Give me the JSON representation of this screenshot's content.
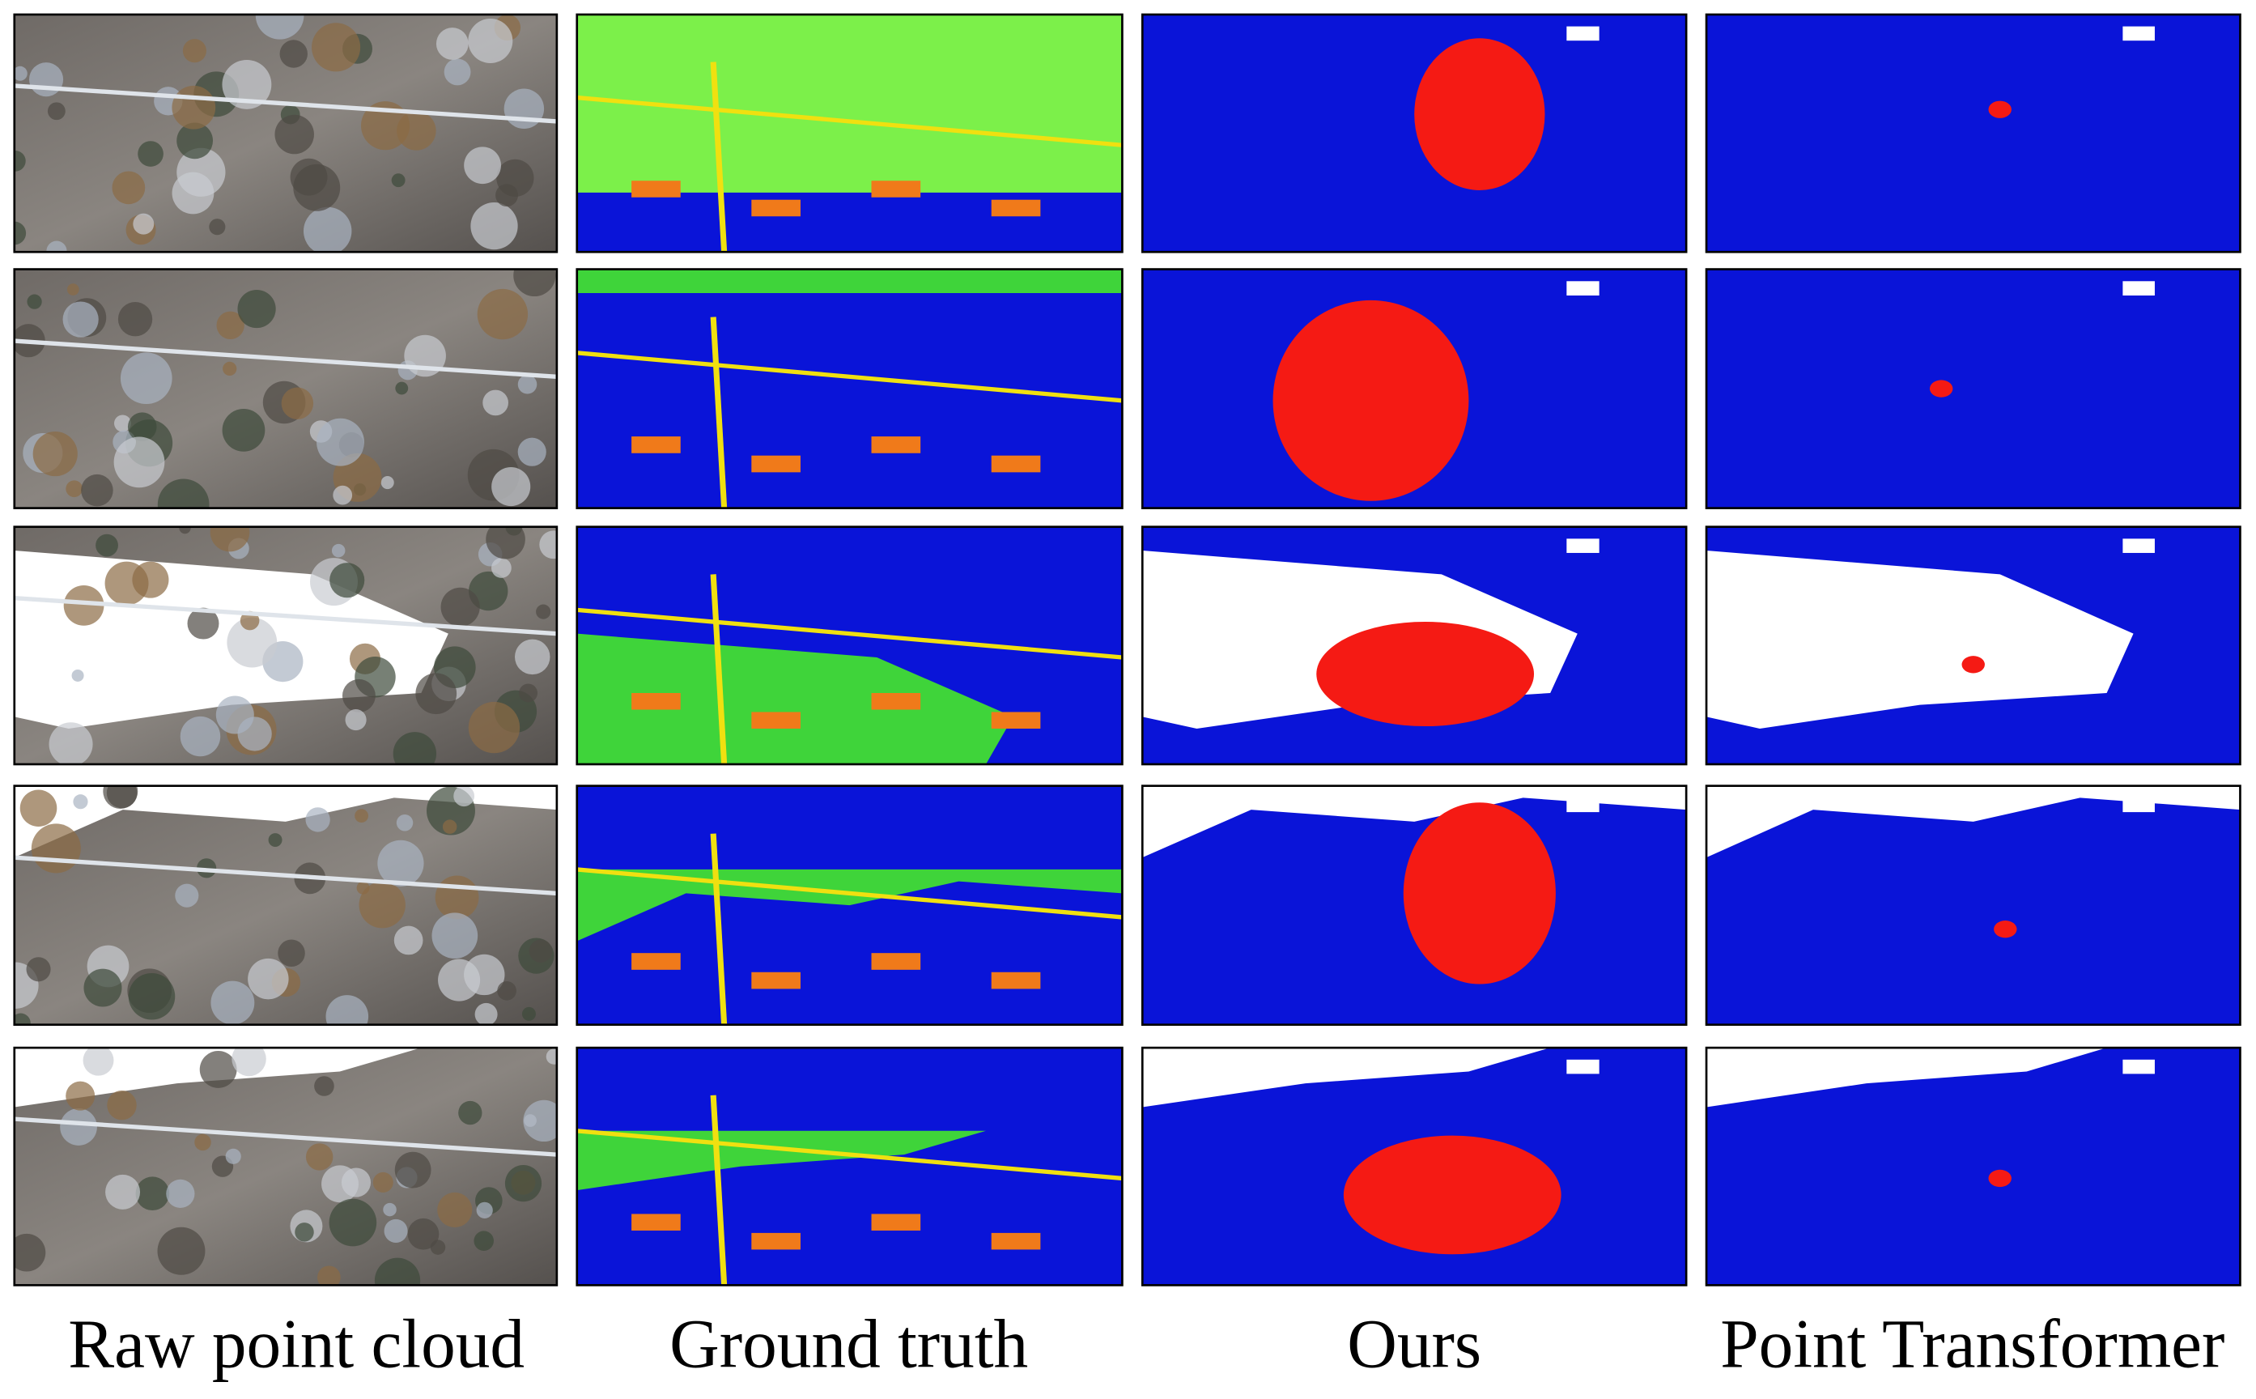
{
  "figure": {
    "columns": [
      "Raw point cloud",
      "Ground truth",
      "Ours",
      "Point Transformer"
    ]
  }
}
